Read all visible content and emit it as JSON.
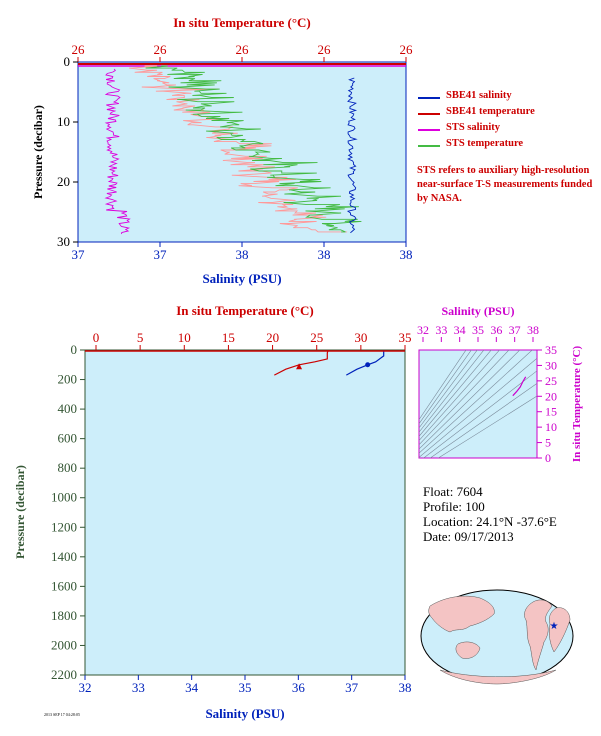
{
  "colors": {
    "salinity": "#0022bb",
    "temperature": "#cc0000",
    "sts_salinity": "#dd00dd",
    "sts_temperature": "#44bb44",
    "sts_temp_shadow": "#ff9999",
    "plot_bg": "#cdeefa",
    "pressure_axis": "#335533",
    "ts_axis": "#cc00cc"
  },
  "top_chart": {
    "temp_axis_label": "In situ Temperature (°C)",
    "temp_ticks": [
      "26",
      "26",
      "26",
      "26",
      "26"
    ],
    "sal_axis_label": "Salinity (PSU)",
    "sal_ticks": [
      "37",
      "37",
      "38",
      "38",
      "38"
    ],
    "pressure_label": "Pressure (decibar)",
    "pressure_ticks": [
      "0",
      "10",
      "20",
      "30"
    ]
  },
  "legend": [
    {
      "label": "SBE41 salinity",
      "color": "#0022bb"
    },
    {
      "label": "SBE41 temperature",
      "color": "#cc0000"
    },
    {
      "label": "STS salinity",
      "color": "#dd00dd"
    },
    {
      "label": "STS temperature",
      "color": "#44bb44"
    }
  ],
  "sts_note": "STS refers to auxiliary high-resolution near-surface T-S measurements funded by NASA.",
  "main_chart": {
    "temp_axis_label": "In situ Temperature (°C)",
    "temp_ticks": [
      "0",
      "5",
      "10",
      "15",
      "20",
      "25",
      "30",
      "35"
    ],
    "sal_axis_label": "Salinity (PSU)",
    "sal_ticks": [
      "32",
      "33",
      "34",
      "35",
      "36",
      "37",
      "38"
    ],
    "pressure_label": "Pressure (decibar)",
    "pressure_ticks": [
      "0",
      "200",
      "400",
      "600",
      "800",
      "1000",
      "1200",
      "1400",
      "1600",
      "1800",
      "2000",
      "2200"
    ]
  },
  "ts_chart": {
    "sal_axis_label": "Salinity (PSU)",
    "sal_ticks": [
      "32",
      "33",
      "34",
      "35",
      "36",
      "37",
      "38"
    ],
    "temp_axis_label": "In situ Temperature (°C)",
    "temp_ticks": [
      "0",
      "5",
      "10",
      "15",
      "20",
      "25",
      "30",
      "35"
    ]
  },
  "float_info": {
    "float": "Float:  7604",
    "profile": "Profile:  100",
    "location": "Location:  24.1°N  -37.6°E",
    "date": "Date:  09/17/2013"
  },
  "credit": "2013 SEP 17 04:28:05",
  "chart_data": [
    {
      "type": "line",
      "name": "near-surface profile",
      "ylim": [
        0,
        30
      ],
      "series": [
        {
          "name": "SBE41 salinity",
          "x": [
            38.4,
            38.4
          ],
          "y": [
            0,
            0.5
          ]
        },
        {
          "name": "SBE41 temperature",
          "x": [
            26.3,
            26.3
          ],
          "y": [
            0,
            0.5
          ]
        },
        {
          "name": "STS salinity",
          "x": [
            37.3,
            37.3,
            37.35,
            37.32,
            37.38,
            37.35,
            37.42
          ],
          "y": [
            1,
            5,
            10,
            15,
            20,
            25,
            28
          ]
        },
        {
          "name": "STS temperature",
          "x": [
            26.05,
            26.3,
            26.45,
            26.6,
            26.7,
            26.8,
            26.9
          ],
          "y": [
            1,
            5,
            10,
            15,
            20,
            25,
            28
          ]
        }
      ]
    },
    {
      "type": "line",
      "name": "full profile",
      "ylim": [
        2200,
        0
      ],
      "xlim_temperature": [
        0,
        35
      ],
      "xlim_salinity": [
        32,
        38
      ],
      "series": [
        {
          "name": "temperature",
          "x": [
            26.3,
            26.2,
            26.2,
            24.8,
            23.0,
            21.5,
            20.2
          ],
          "y": [
            0,
            20,
            60,
            80,
            100,
            130,
            170
          ]
        },
        {
          "name": "salinity",
          "x": [
            37.6,
            37.6,
            37.45,
            37.3,
            37.1,
            36.9
          ],
          "y": [
            0,
            40,
            80,
            100,
            130,
            170
          ]
        }
      ]
    },
    {
      "type": "scatter",
      "name": "T-S diagram",
      "xlim": [
        32,
        38
      ],
      "ylim": [
        0,
        35
      ],
      "series": [
        {
          "name": "T-S",
          "x": [
            36.9,
            37.1,
            37.3,
            37.45,
            37.6
          ],
          "y": [
            20.2,
            21.5,
            23.0,
            24.8,
            26.3
          ]
        }
      ]
    }
  ]
}
